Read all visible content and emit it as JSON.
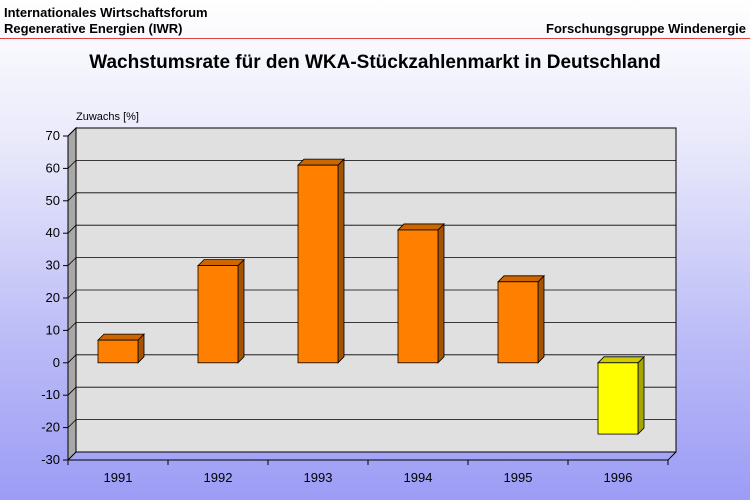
{
  "header": {
    "line1": "Internationales Wirtschaftsforum",
    "line2": "Regenerative Energien (IWR)",
    "right": "Forschungsgruppe Windenergie"
  },
  "colors": {
    "bar_positive": "#ff8000",
    "bar_negative": "#ffff00",
    "plot_back": "#e0e0e0",
    "plot_side": "#a8a8a8"
  },
  "chart_data": {
    "type": "bar",
    "title": "Wachstumsrate für den WKA-Stückzahlenmarkt in Deutschland",
    "ylabel": "Zuwachs [%]",
    "xlabel": "",
    "categories": [
      "1991",
      "1992",
      "1993",
      "1994",
      "1995",
      "1996"
    ],
    "values": [
      7,
      30,
      61,
      41,
      25,
      -22
    ],
    "ylim": [
      -30,
      70
    ],
    "yticks": [
      70,
      60,
      50,
      40,
      30,
      20,
      10,
      0,
      -10,
      -20,
      -30
    ],
    "grid": true,
    "style": "3d-bar"
  }
}
